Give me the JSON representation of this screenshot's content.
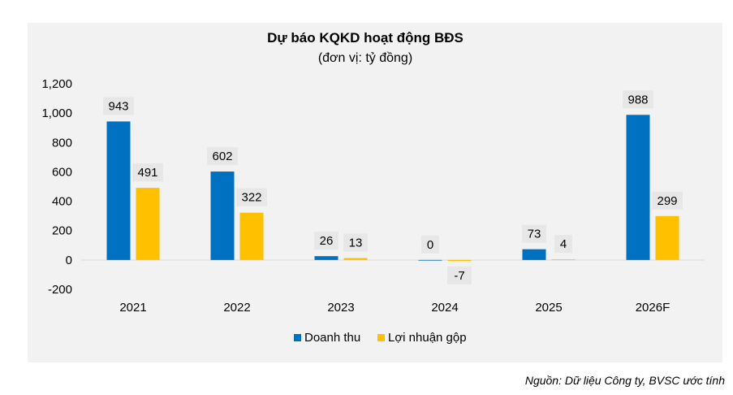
{
  "chart_data": {
    "type": "bar",
    "title": "Dự báo KQKD hoạt động BĐS",
    "subtitle": "(đơn vị: tỷ đồng)",
    "categories": [
      "2021",
      "2022",
      "2023",
      "2024",
      "2025",
      "2026F"
    ],
    "series": [
      {
        "name": "Doanh thu",
        "color": "#0070c0",
        "values": [
          943,
          602,
          26,
          0,
          73,
          988
        ]
      },
      {
        "name": "Lợi nhuận gộp",
        "color": "#ffc000",
        "values": [
          491,
          322,
          13,
          -7,
          4,
          299
        ]
      }
    ],
    "ylim": [
      -200,
      1200
    ],
    "yticks": [
      -200,
      0,
      200,
      400,
      600,
      800,
      1000,
      1200
    ],
    "ytick_labels": [
      "-200",
      "0",
      "200",
      "400",
      "600",
      "800",
      "1,000",
      "1,200"
    ],
    "grid": false,
    "legend": "bottom",
    "xlabel": "",
    "ylabel": ""
  },
  "source": "Nguồn: Dữ liệu Công ty, BVSC ước tính"
}
